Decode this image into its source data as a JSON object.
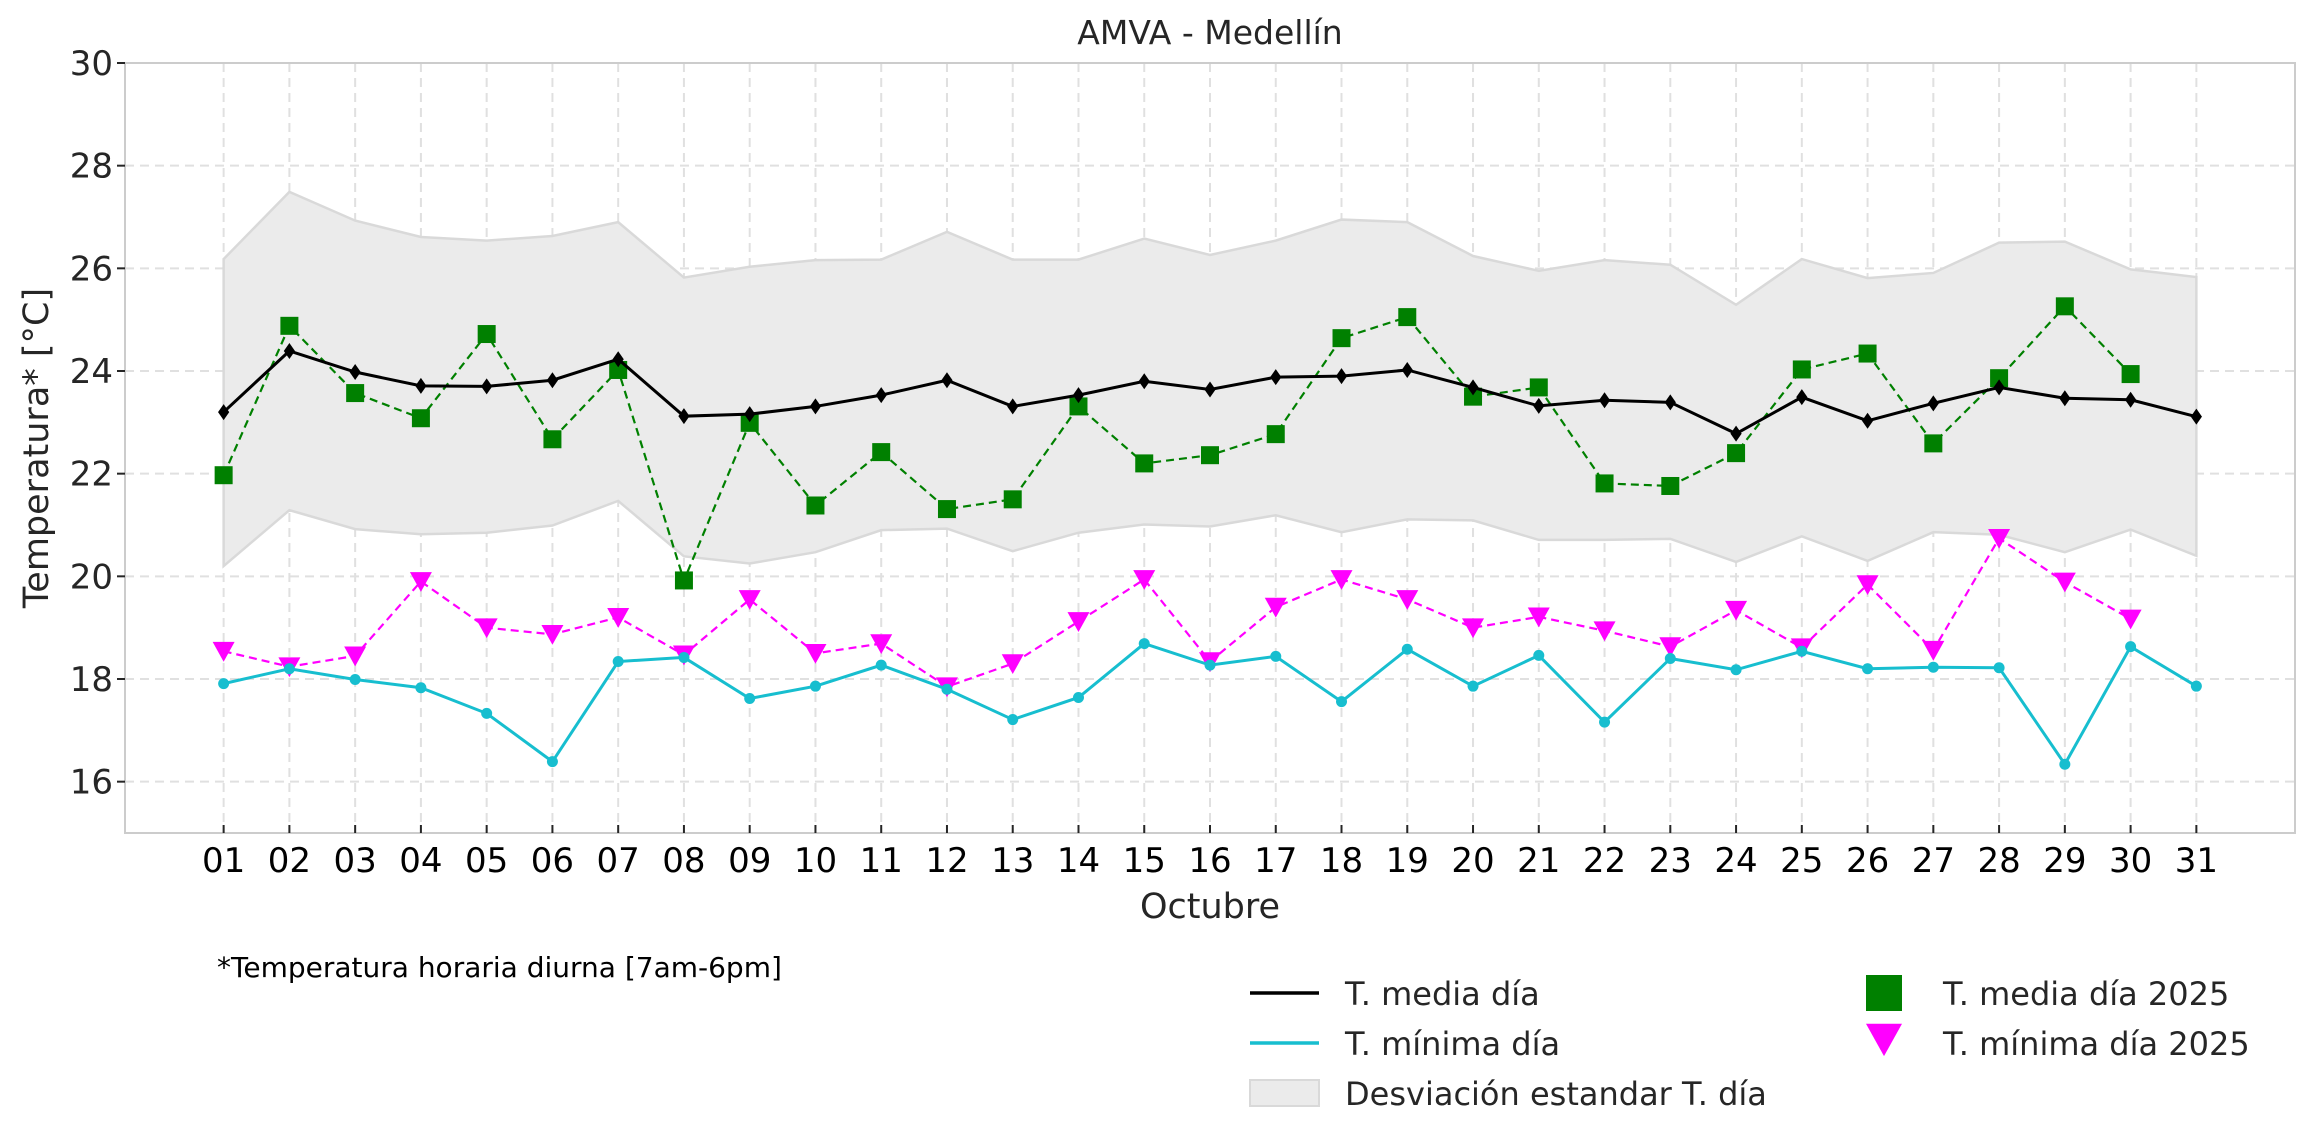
{
  "chart_data": {
    "type": "line",
    "title": "AMVA - Medellín",
    "xlabel": "Octubre",
    "ylabel": "Temperatura* [°C]",
    "footnote": "*Temperatura horaria diurna [7am-6pm]",
    "x": [
      1,
      2,
      3,
      4,
      5,
      6,
      7,
      8,
      9,
      10,
      11,
      12,
      13,
      14,
      15,
      16,
      17,
      18,
      19,
      20,
      21,
      22,
      23,
      24,
      25,
      26,
      27,
      28,
      29,
      30,
      31
    ],
    "categories": [
      "01",
      "02",
      "03",
      "04",
      "05",
      "06",
      "07",
      "08",
      "09",
      "10",
      "11",
      "12",
      "13",
      "14",
      "15",
      "16",
      "17",
      "18",
      "19",
      "20",
      "21",
      "22",
      "23",
      "24",
      "25",
      "26",
      "27",
      "28",
      "29",
      "30",
      "31"
    ],
    "xlim": [
      -0.5,
      32.5
    ],
    "ylim": [
      15,
      30
    ],
    "yticks": [
      16,
      18,
      20,
      22,
      24,
      26,
      28,
      30
    ],
    "grid": true,
    "legend_position": "bottom-right (below axes)",
    "band": {
      "name": "Desviación estandar T. día",
      "color": "#ebebeb",
      "edge_color": "#d9d9d9",
      "upper": [
        26.18,
        27.49,
        26.93,
        26.61,
        26.54,
        26.63,
        26.9,
        25.82,
        26.03,
        26.16,
        26.17,
        26.71,
        26.17,
        26.17,
        26.58,
        26.26,
        26.54,
        26.95,
        26.9,
        26.24,
        25.95,
        26.16,
        26.07,
        25.29,
        26.18,
        25.81,
        25.91,
        26.5,
        26.52,
        25.98,
        25.83
      ],
      "lower": [
        20.2,
        21.29,
        20.92,
        20.82,
        20.85,
        20.99,
        21.47,
        20.39,
        20.25,
        20.47,
        20.9,
        20.93,
        20.49,
        20.85,
        21.01,
        20.97,
        21.19,
        20.86,
        21.11,
        21.09,
        20.71,
        20.71,
        20.73,
        20.28,
        20.78,
        20.3,
        20.86,
        20.81,
        20.47,
        20.91,
        20.4
      ]
    },
    "series": [
      {
        "name": "T. media día",
        "color": "#000000",
        "style": "solid",
        "marker": "diamond",
        "values": [
          23.2,
          24.39,
          23.98,
          23.71,
          23.7,
          23.82,
          24.23,
          23.12,
          23.16,
          23.31,
          23.53,
          23.82,
          23.31,
          23.53,
          23.8,
          23.64,
          23.88,
          23.9,
          24.02,
          23.68,
          23.32,
          23.43,
          23.39,
          22.78,
          23.49,
          23.03,
          23.37,
          23.68,
          23.47,
          23.44,
          23.11
        ]
      },
      {
        "name": "T. mínima día",
        "color": "#17becf",
        "style": "solid",
        "marker": "circle",
        "values": [
          17.91,
          18.2,
          17.99,
          17.83,
          17.33,
          16.39,
          18.34,
          18.42,
          17.62,
          17.86,
          18.27,
          17.8,
          17.21,
          17.64,
          18.69,
          18.27,
          18.44,
          17.56,
          18.58,
          17.86,
          18.46,
          17.16,
          18.4,
          18.18,
          18.54,
          18.2,
          18.23,
          18.22,
          16.34,
          18.63,
          17.86
        ]
      },
      {
        "name": "T. media día 2025",
        "color": "#008000",
        "style": "dashed",
        "marker": "square",
        "values": [
          21.97,
          24.88,
          23.57,
          23.08,
          24.72,
          22.67,
          24.02,
          19.92,
          22.99,
          21.38,
          22.42,
          21.31,
          21.5,
          23.31,
          22.2,
          22.36,
          22.77,
          24.64,
          25.05,
          23.5,
          23.68,
          21.81,
          21.76,
          22.4,
          24.03,
          24.34,
          22.59,
          23.86,
          25.26,
          23.94,
          null
        ]
      },
      {
        "name": "T. mínima día 2025",
        "color": "#ff00ff",
        "style": "dashed",
        "marker": "triangle-down",
        "values": [
          18.54,
          18.24,
          18.45,
          19.9,
          19.0,
          18.87,
          19.2,
          18.47,
          19.55,
          18.5,
          18.69,
          17.85,
          18.3,
          19.12,
          19.94,
          18.34,
          19.4,
          19.94,
          19.55,
          19.0,
          19.21,
          18.94,
          18.63,
          19.34,
          18.61,
          19.84,
          18.56,
          20.74,
          19.89,
          19.17,
          null
        ]
      }
    ],
    "legend": [
      {
        "label": "T. media día",
        "kind": "line",
        "color": "#000000"
      },
      {
        "label": "T. mínima día",
        "kind": "line",
        "color": "#17becf"
      },
      {
        "label": "Desviación estandar T. día",
        "kind": "patch",
        "color": "#ebebeb"
      },
      {
        "label": "T. media día 2025",
        "kind": "square",
        "color": "#008000"
      },
      {
        "label": "T. mínima día 2025",
        "kind": "triangle-down",
        "color": "#ff00ff"
      }
    ]
  }
}
